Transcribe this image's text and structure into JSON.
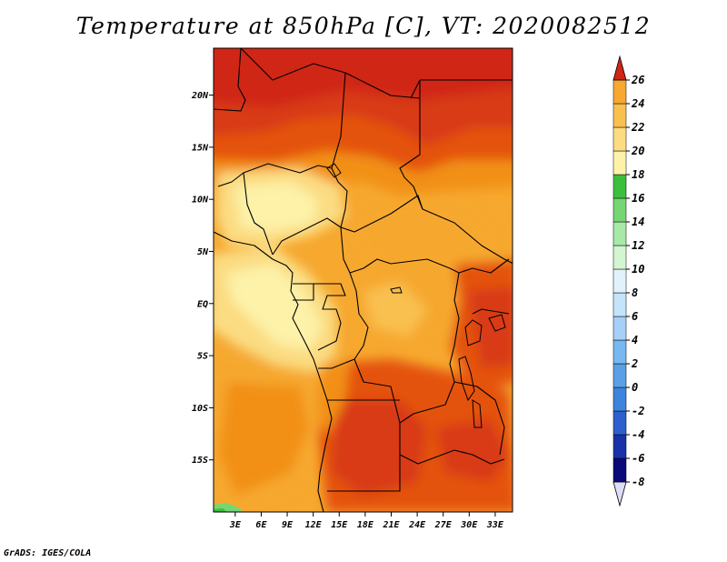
{
  "title": "Temperature at 850hPa [C], VT: 2020082512",
  "credit": "GrADS: IGES/COLA",
  "map": {
    "lat_labels": [
      "20N",
      "15N",
      "10N",
      "5N",
      "EQ",
      "5S",
      "10S",
      "15S"
    ],
    "lat_values": [
      20,
      15,
      10,
      5,
      0,
      -5,
      -10,
      -15
    ],
    "lon_labels": [
      "3E",
      "6E",
      "9E",
      "12E",
      "15E",
      "18E",
      "21E",
      "24E",
      "27E",
      "30E",
      "33E"
    ],
    "lon_values": [
      3,
      6,
      9,
      12,
      15,
      18,
      21,
      24,
      27,
      30,
      33
    ],
    "extent": {
      "lon": [
        0.5,
        35.0
      ],
      "lat": [
        -20.0,
        24.5
      ]
    }
  },
  "colorbar": {
    "labels": [
      "26",
      "24",
      "22",
      "20",
      "18",
      "16",
      "14",
      "12",
      "10",
      "8",
      "6",
      "4",
      "2",
      "0",
      "-2",
      "-4",
      "-6",
      "-8"
    ],
    "colors": [
      "#ffffff",
      "#ddddf7",
      "#0a0a78",
      "#1a32a8",
      "#2e5fcc",
      "#3d84dc",
      "#5aa0e6",
      "#78b8f0",
      "#a6d0f8",
      "#c4e4fb",
      "#e2f2fd",
      "#d2f5d2",
      "#a8e8a8",
      "#74d774",
      "#3cbf3c",
      "#fdf2a8",
      "#fbdc82",
      "#f9c050",
      "#f6a82f",
      "#f29016",
      "#ec700a",
      "#e45210",
      "#d83a14",
      "#d02614"
    ]
  }
}
